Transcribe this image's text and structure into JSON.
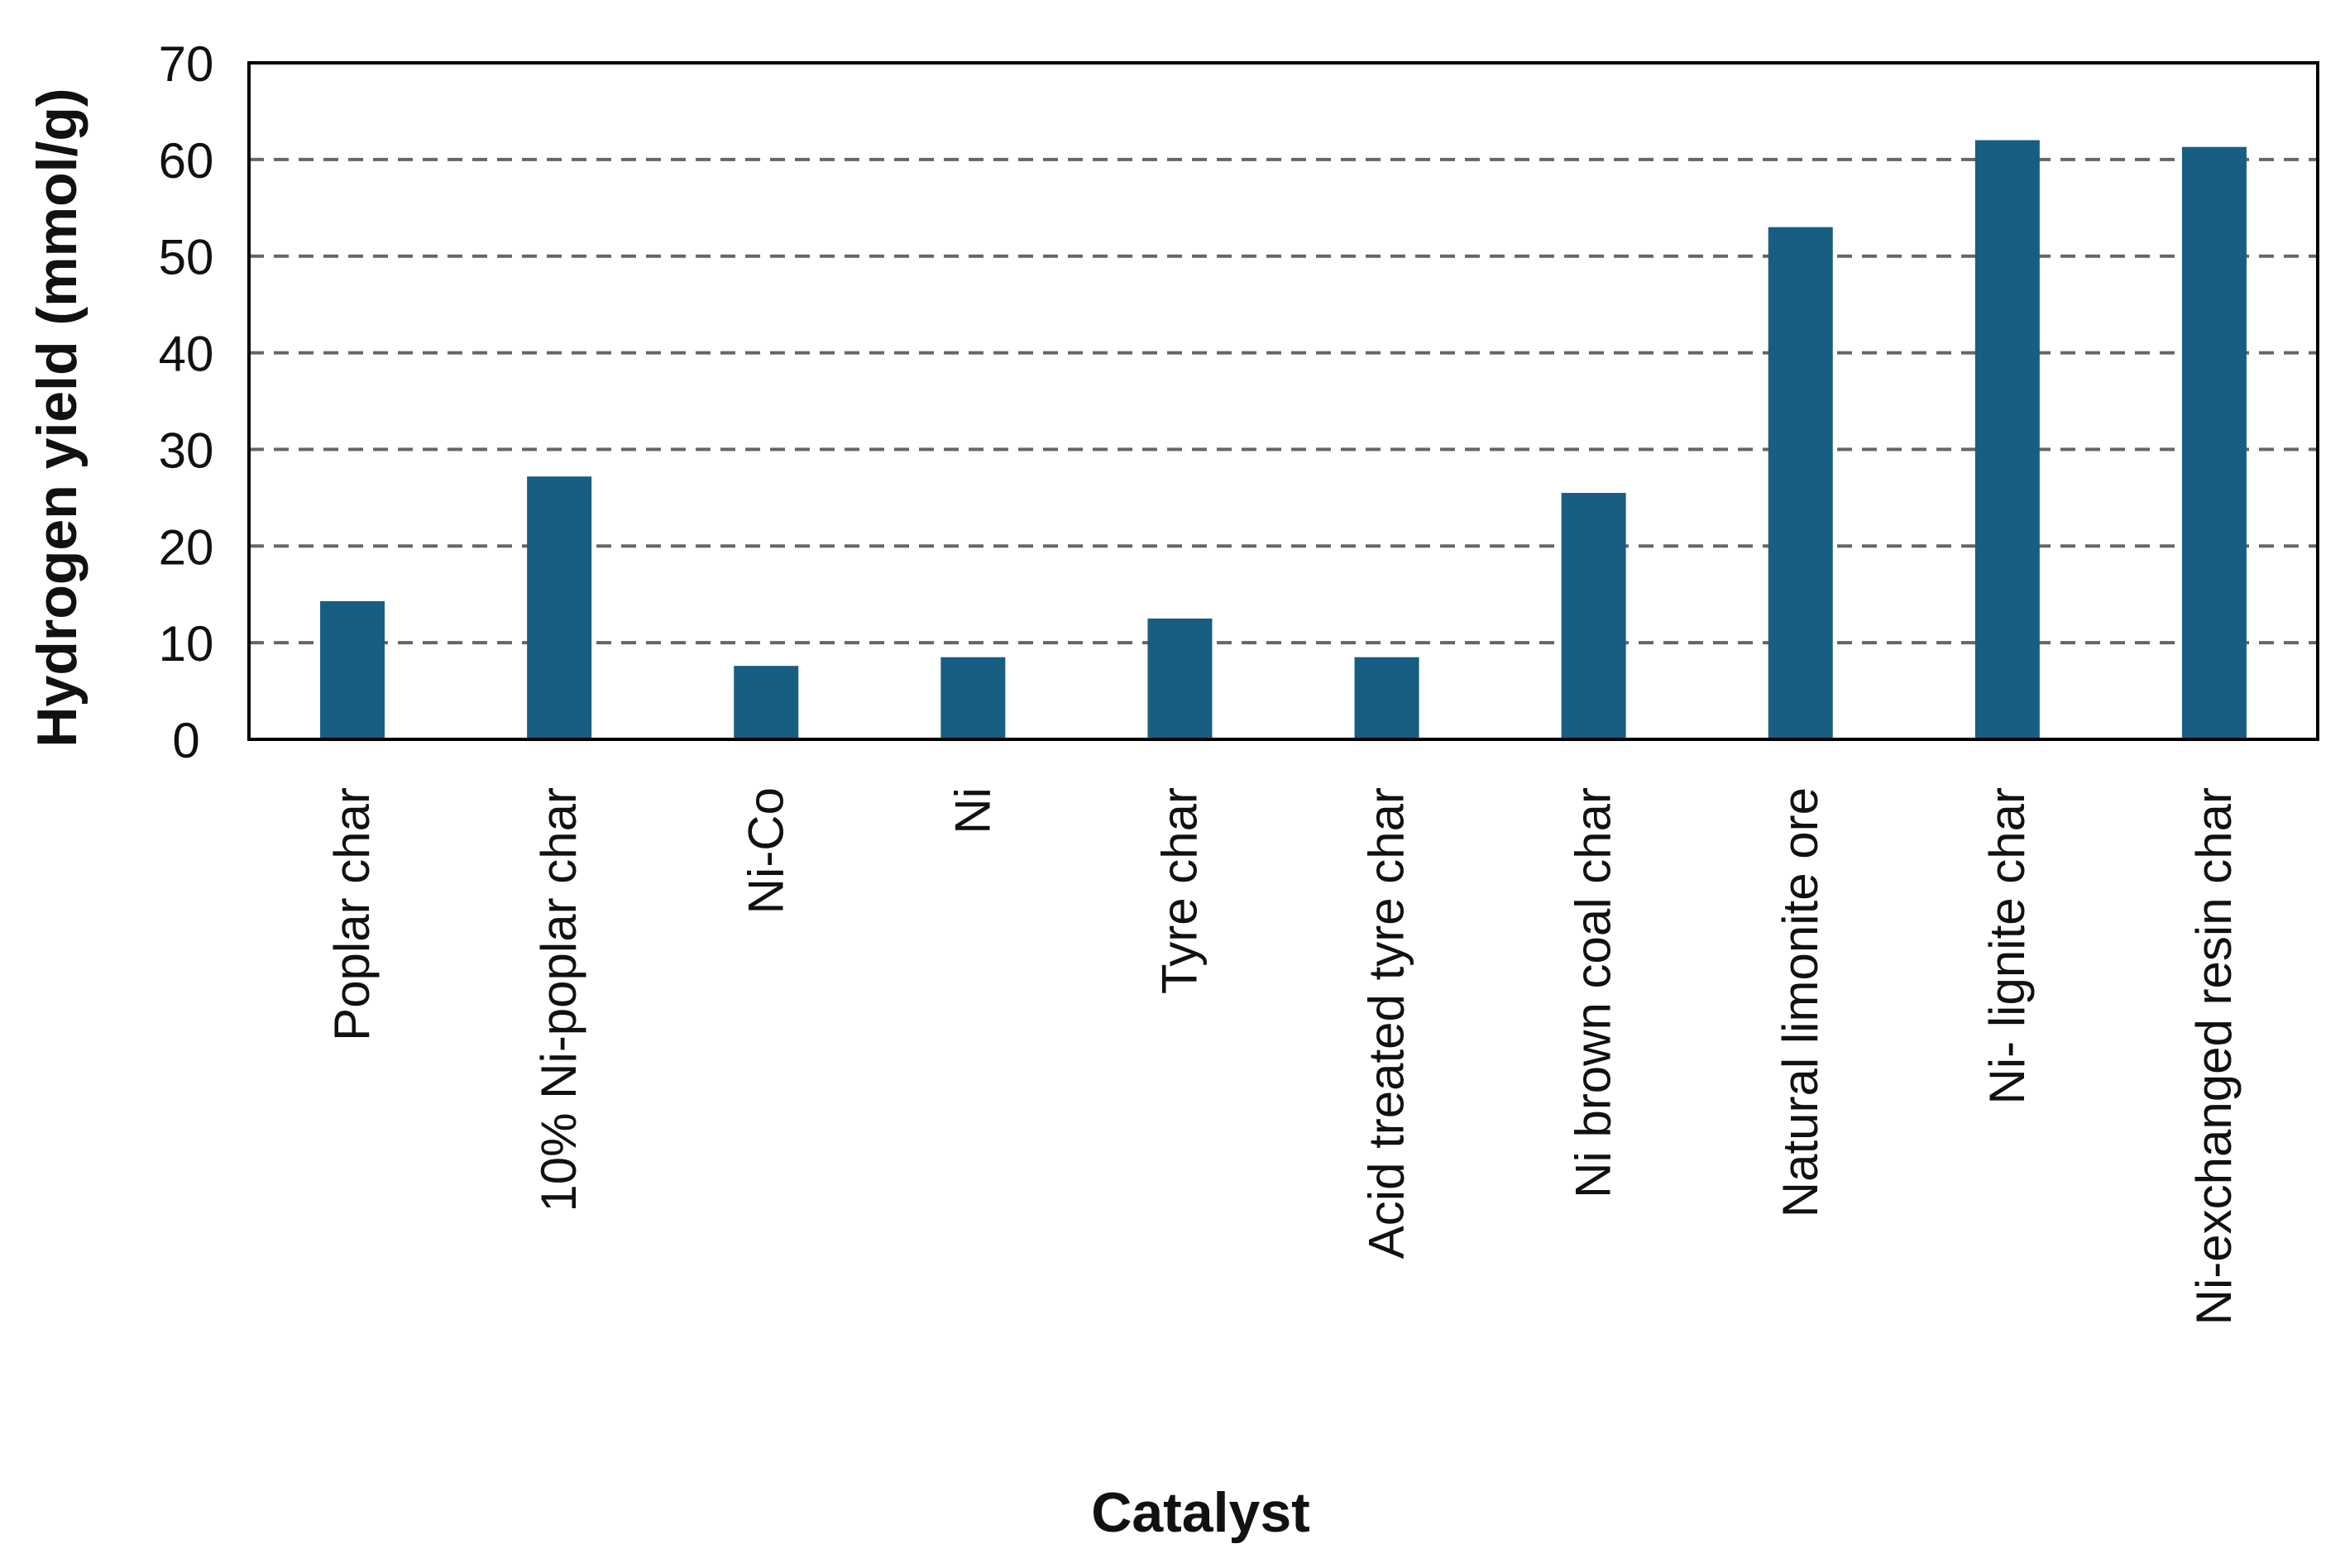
{
  "chart_data": {
    "type": "bar",
    "title": "",
    "xlabel": "Catalyst",
    "ylabel": "Hydrogen yield (mmol/g)",
    "ylim": [
      0,
      70
    ],
    "yticks": [
      0,
      10,
      20,
      30,
      40,
      50,
      60,
      70
    ],
    "grid": "horizontal dashed",
    "legend": "none",
    "categories": [
      "Poplar char",
      "10% Ni-poplar char",
      "Ni-Co",
      "Ni",
      "Tyre char",
      "Acid treated tyre char",
      "Ni brown coal char",
      "Natural limonite ore",
      "Ni- lignite char",
      "Ni-exchanged resin char"
    ],
    "values": [
      14.3,
      27.2,
      7.6,
      8.5,
      12.5,
      8.5,
      25.5,
      53.0,
      62.0,
      61.3
    ],
    "colors": {
      "bar": "#175e82",
      "grid": "#666666",
      "axis": "#000000"
    }
  }
}
